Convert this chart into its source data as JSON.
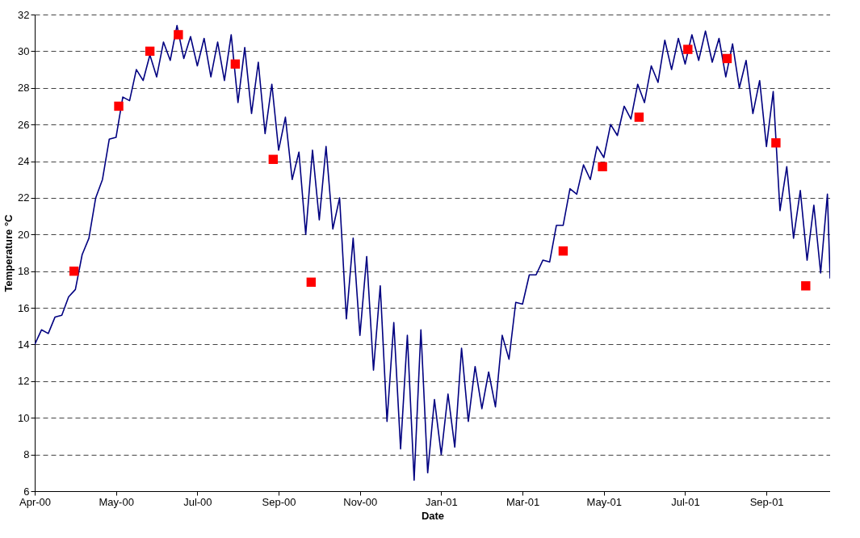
{
  "chart_data": {
    "type": "line",
    "xlabel": "Date",
    "ylabel": "Temperature  °C",
    "xlim": [
      "2000-04-01",
      "2001-11-09"
    ],
    "xticks": [
      {
        "value": "2000-04-01",
        "label": "Apr-00"
      },
      {
        "value": "2000-05-31",
        "label": "May-00"
      },
      {
        "value": "2000-07-30",
        "label": "Jul-00"
      },
      {
        "value": "2000-09-28",
        "label": "Sep-00"
      },
      {
        "value": "2000-11-27",
        "label": "Nov-00"
      },
      {
        "value": "2001-01-26",
        "label": "Jan-01"
      },
      {
        "value": "2001-03-27",
        "label": "Mar-01"
      },
      {
        "value": "2001-05-26",
        "label": "May-01"
      },
      {
        "value": "2001-07-25",
        "label": "Jul-01"
      },
      {
        "value": "2001-09-23",
        "label": "Sep-01"
      }
    ],
    "ylim": [
      6,
      32
    ],
    "yticks": [
      6,
      8,
      10,
      12,
      14,
      16,
      18,
      20,
      22,
      24,
      26,
      28,
      30,
      32
    ],
    "grid": "y",
    "series": [
      {
        "color": "#000080",
        "line_style": "solid",
        "x": [
          "2000-04-01",
          "2000-04-06",
          "2000-04-11",
          "2000-04-16",
          "2000-04-21",
          "2000-04-26",
          "2000-05-01",
          "2000-05-06",
          "2000-05-11",
          "2000-05-16",
          "2000-05-21",
          "2000-05-26",
          "2000-05-31",
          "2000-06-05",
          "2000-06-10",
          "2000-06-15",
          "2000-06-20",
          "2000-06-25",
          "2000-06-30",
          "2000-07-05",
          "2000-07-10",
          "2000-07-15",
          "2000-07-20",
          "2000-07-25",
          "2000-07-30",
          "2000-08-04",
          "2000-08-09",
          "2000-08-14",
          "2000-08-19",
          "2000-08-24",
          "2000-08-29",
          "2000-09-03",
          "2000-09-08",
          "2000-09-13",
          "2000-09-18",
          "2000-09-23",
          "2000-09-28",
          "2000-10-03",
          "2000-10-08",
          "2000-10-13",
          "2000-10-18",
          "2000-10-23",
          "2000-10-28",
          "2000-11-02",
          "2000-11-07",
          "2000-11-12",
          "2000-11-17",
          "2000-11-22",
          "2000-11-27",
          "2000-12-02",
          "2000-12-07",
          "2000-12-12",
          "2000-12-17",
          "2000-12-22",
          "2000-12-27",
          "2001-01-01",
          "2001-01-06",
          "2001-01-11",
          "2001-01-16",
          "2001-01-21",
          "2001-01-26",
          "2001-01-31",
          "2001-02-05",
          "2001-02-10",
          "2001-02-15",
          "2001-02-20",
          "2001-02-25",
          "2001-03-02",
          "2001-03-07",
          "2001-03-12",
          "2001-03-17",
          "2001-03-22",
          "2001-03-27",
          "2001-04-01",
          "2001-04-06",
          "2001-04-11",
          "2001-04-16",
          "2001-04-21",
          "2001-04-26",
          "2001-05-01",
          "2001-05-06",
          "2001-05-11",
          "2001-05-16",
          "2001-05-21",
          "2001-05-26",
          "2001-05-31",
          "2001-06-05",
          "2001-06-10",
          "2001-06-15",
          "2001-06-20",
          "2001-06-25",
          "2001-06-30",
          "2001-07-05",
          "2001-07-10",
          "2001-07-15",
          "2001-07-20",
          "2001-07-25",
          "2001-07-30",
          "2001-08-04",
          "2001-08-09",
          "2001-08-14",
          "2001-08-19",
          "2001-08-24",
          "2001-08-29",
          "2001-09-03",
          "2001-09-08",
          "2001-09-13",
          "2001-09-18",
          "2001-09-23",
          "2001-09-28",
          "2001-10-03",
          "2001-10-08",
          "2001-10-13",
          "2001-10-18",
          "2001-10-23",
          "2001-10-28",
          "2001-11-02",
          "2001-11-07",
          "2001-11-09"
        ],
        "values": [
          14.0,
          14.8,
          14.6,
          15.5,
          15.6,
          16.6,
          17.0,
          18.9,
          19.8,
          22.0,
          23.0,
          25.2,
          25.3,
          27.5,
          27.3,
          29.0,
          28.4,
          29.8,
          28.6,
          30.5,
          29.5,
          31.4,
          29.6,
          30.8,
          29.2,
          30.7,
          28.6,
          30.5,
          28.4,
          30.9,
          27.2,
          30.2,
          26.6,
          29.4,
          25.5,
          28.2,
          24.6,
          26.4,
          23.0,
          24.5,
          20.0,
          24.6,
          20.8,
          24.8,
          20.3,
          22.0,
          15.4,
          19.8,
          14.5,
          18.8,
          12.6,
          17.2,
          9.8,
          15.2,
          8.3,
          14.5,
          6.6,
          14.8,
          7.0,
          11.0,
          8.0,
          11.3,
          8.4,
          13.8,
          9.8,
          12.8,
          10.5,
          12.5,
          10.6,
          14.5,
          13.2,
          16.3,
          16.2,
          17.8,
          17.8,
          18.6,
          18.5,
          20.5,
          20.5,
          22.5,
          22.2,
          23.8,
          23.0,
          24.8,
          24.2,
          26.0,
          25.4,
          27.0,
          26.3,
          28.2,
          27.2,
          29.2,
          28.3,
          30.6,
          29.0,
          30.7,
          29.3,
          30.9,
          29.5,
          31.1,
          29.4,
          30.7,
          28.6,
          30.4,
          28.0,
          29.5,
          26.6,
          28.4,
          24.8,
          27.8,
          21.3,
          23.7,
          19.8,
          22.4,
          18.6,
          21.6,
          17.9,
          22.2,
          17.6
        ]
      },
      {
        "type": "scatter",
        "color": "#ff0000",
        "marker": "square",
        "x": [
          "2000-04-30",
          "2000-06-02",
          "2000-06-25",
          "2000-07-16",
          "2000-08-27",
          "2000-09-24",
          "2000-10-22",
          "2001-04-26",
          "2001-05-25",
          "2001-06-21",
          "2001-07-27",
          "2001-08-25",
          "2001-09-30",
          "2001-10-22"
        ],
        "values": [
          18.0,
          27.0,
          30.0,
          30.9,
          29.3,
          24.1,
          17.4,
          19.1,
          23.7,
          26.4,
          30.1,
          29.6,
          25.0,
          17.2
        ]
      }
    ]
  }
}
